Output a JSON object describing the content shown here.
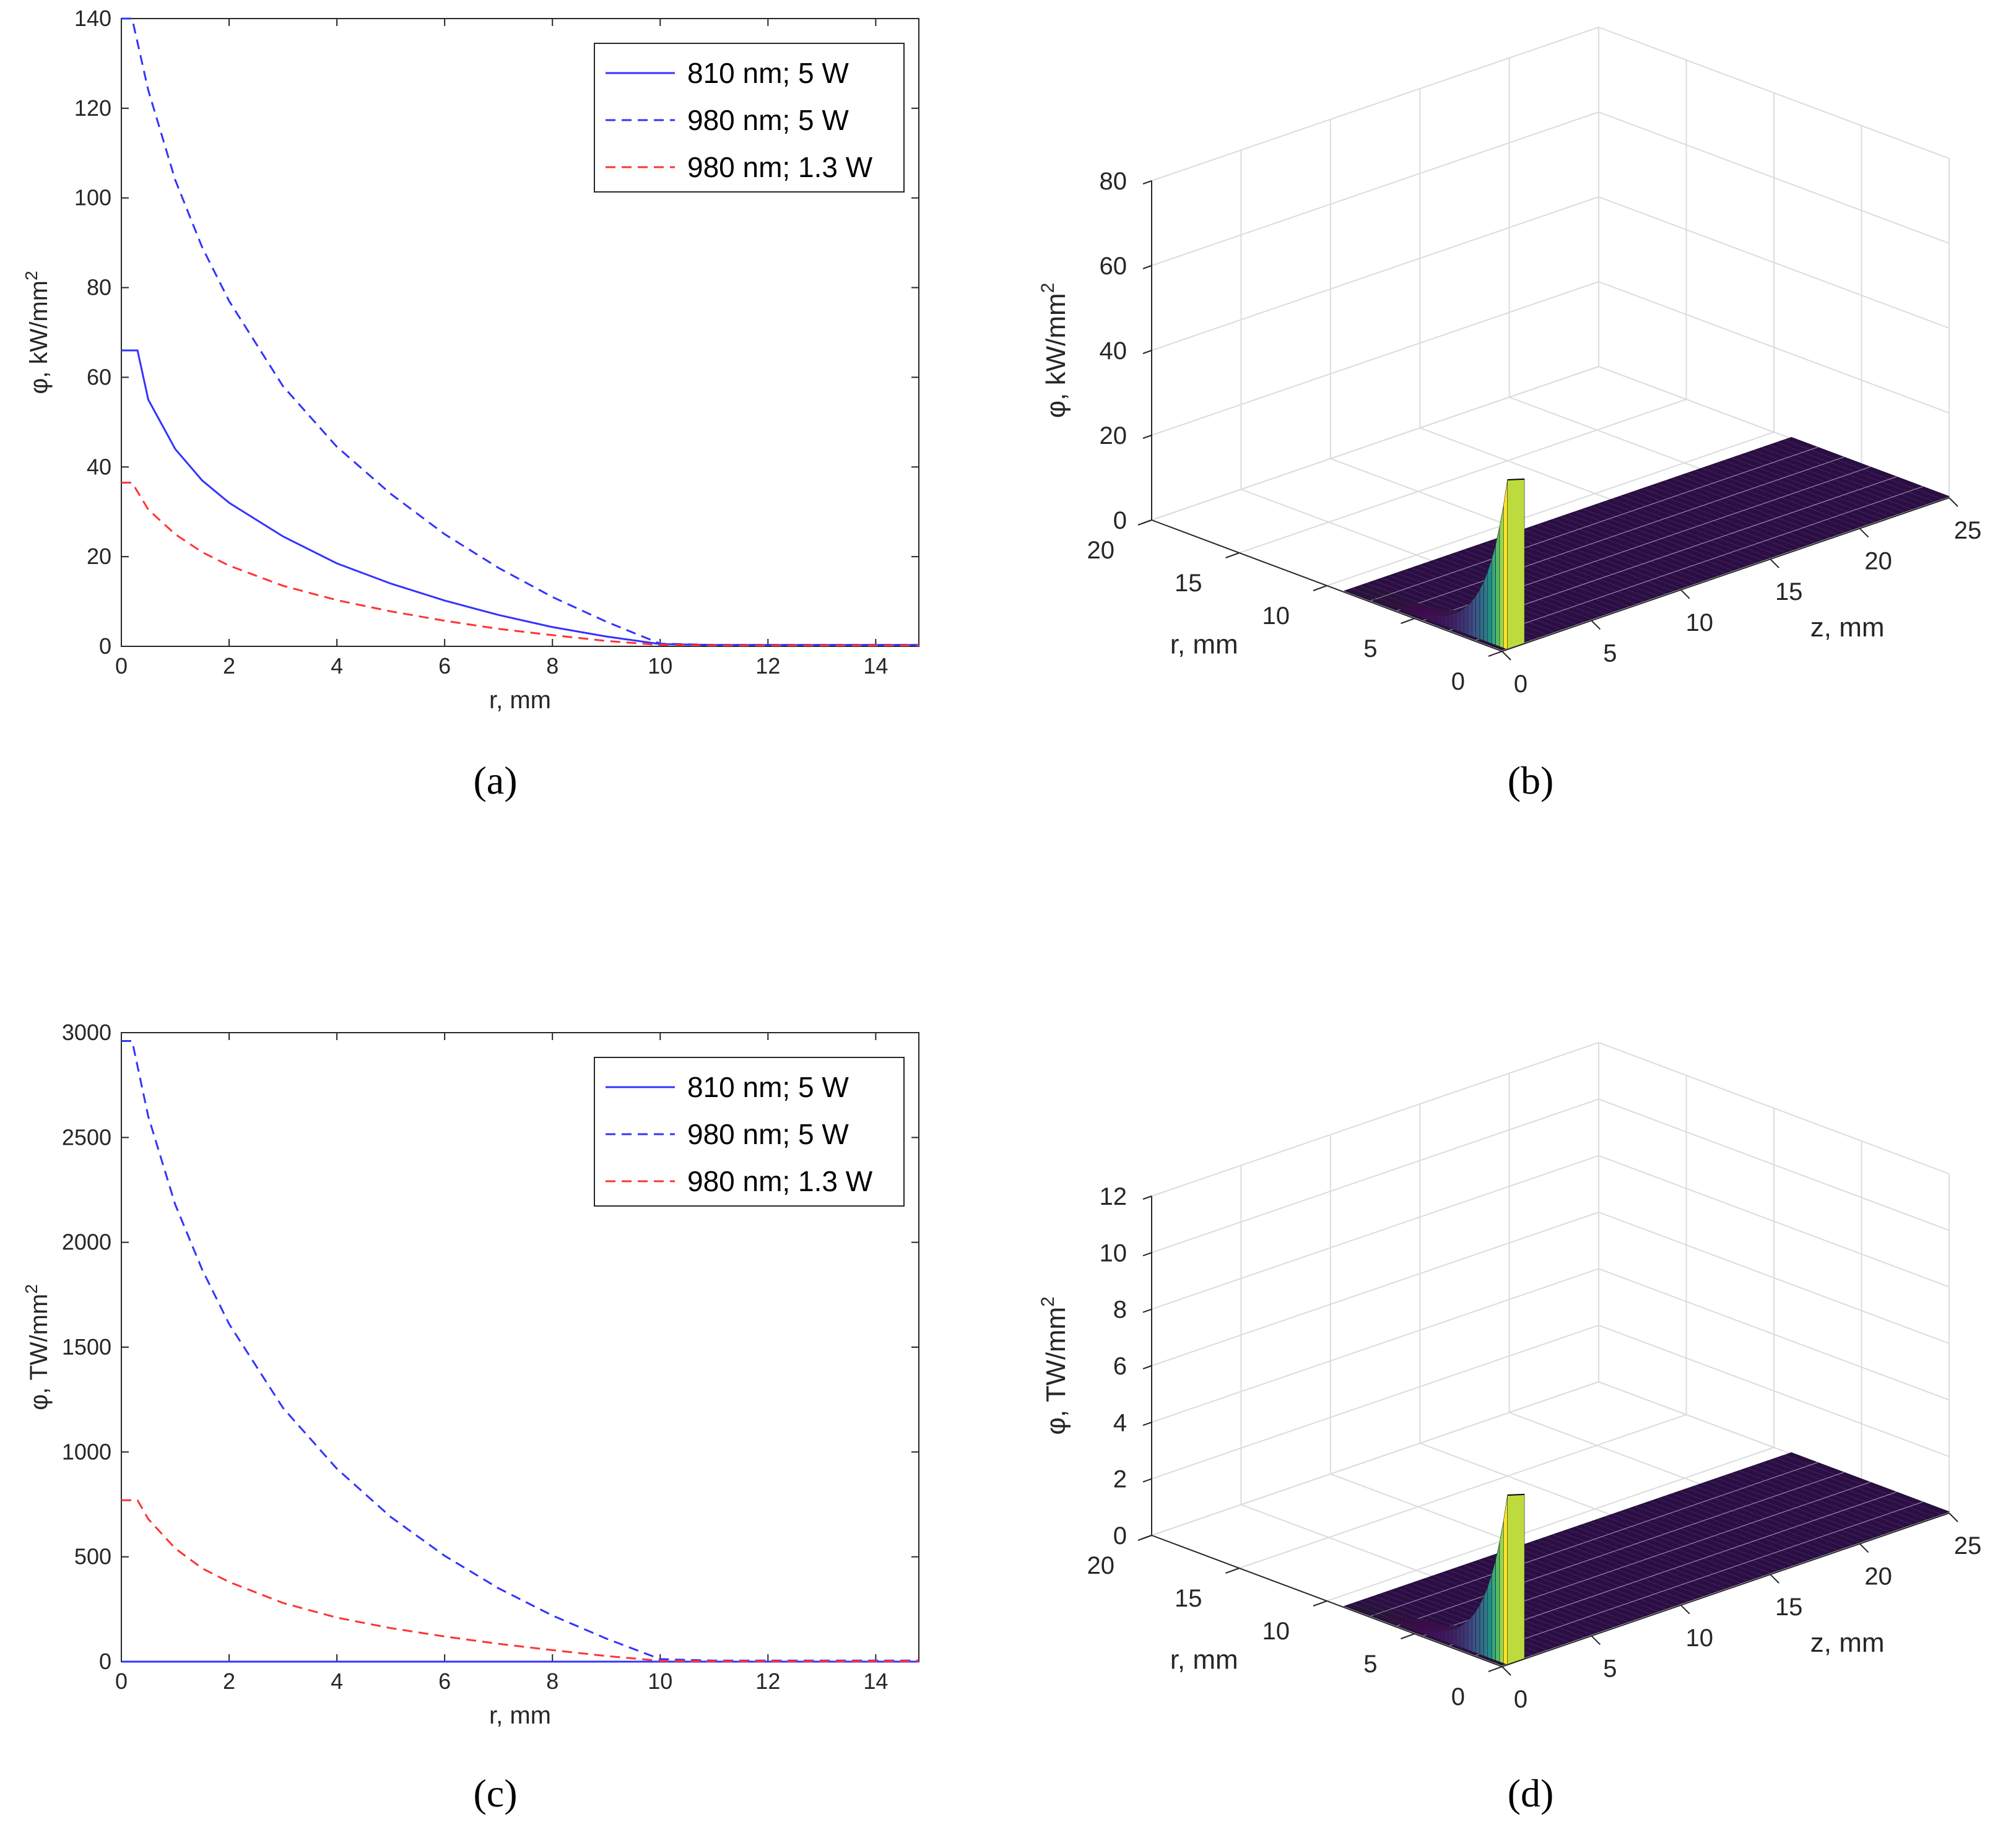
{
  "chart_data": [
    {
      "panel": "(a)",
      "type": "line",
      "xlabel": "r, mm",
      "ylabel": "φ, kW/mm",
      "ylabel_sup": "2",
      "xlim": [
        0,
        14.8
      ],
      "ylim": [
        0,
        140
      ],
      "xticks": [
        "0",
        "2",
        "4",
        "6",
        "8",
        "10",
        "12",
        "14"
      ],
      "yticks": [
        "0",
        "20",
        "40",
        "60",
        "80",
        "100",
        "120",
        "140"
      ],
      "legend_position": "top-right",
      "series": [
        {
          "name": "810 nm; 5 W",
          "color": "#3333ff",
          "dash": "solid",
          "points": [
            [
              0,
              66
            ],
            [
              0.3,
              66
            ],
            [
              0.5,
              55
            ],
            [
              1,
              44
            ],
            [
              1.5,
              37
            ],
            [
              2,
              32
            ],
            [
              3,
              24.5
            ],
            [
              4,
              18.5
            ],
            [
              5,
              14
            ],
            [
              6,
              10.2
            ],
            [
              7,
              7
            ],
            [
              8,
              4.3
            ],
            [
              9,
              2.2
            ],
            [
              10,
              0.5
            ],
            [
              11,
              0.3
            ],
            [
              14.8,
              0.3
            ]
          ]
        },
        {
          "name": "980 nm; 5 W",
          "color": "#3333ff",
          "dash": "dashed",
          "points": [
            [
              0,
              140
            ],
            [
              0.2,
              140
            ],
            [
              0.5,
              124
            ],
            [
              1,
              104
            ],
            [
              1.5,
              89
            ],
            [
              2,
              77
            ],
            [
              3,
              58
            ],
            [
              4,
              44.5
            ],
            [
              5,
              34
            ],
            [
              6,
              25
            ],
            [
              7,
              17.5
            ],
            [
              8,
              11
            ],
            [
              9,
              5.5
            ],
            [
              10,
              0.6
            ],
            [
              11,
              0.3
            ],
            [
              14.8,
              0.3
            ]
          ]
        },
        {
          "name": "980 nm; 1.3 W",
          "color": "#ff3333",
          "dash": "dashed",
          "points": [
            [
              0,
              36.5
            ],
            [
              0.2,
              36.5
            ],
            [
              0.5,
              30.5
            ],
            [
              1,
              25
            ],
            [
              1.5,
              21
            ],
            [
              2,
              18
            ],
            [
              3,
              13.5
            ],
            [
              4,
              10.3
            ],
            [
              5,
              7.8
            ],
            [
              6,
              5.7
            ],
            [
              7,
              3.9
            ],
            [
              8,
              2.5
            ],
            [
              9,
              1.2
            ],
            [
              10,
              0.3
            ],
            [
              11,
              0.2
            ],
            [
              14.8,
              0.2
            ]
          ]
        }
      ]
    },
    {
      "panel": "(b)",
      "type": "surface",
      "xlabel": "z, mm",
      "ylabel": "r, mm",
      "zlabel": "φ, kW/mm",
      "zlabel_sup": "2",
      "xticks": [
        "0",
        "5",
        "10",
        "15",
        "20",
        "25"
      ],
      "yticks": [
        "0",
        "5",
        "10",
        "15",
        "20"
      ],
      "zticks": [
        "0",
        "20",
        "40",
        "60",
        "80"
      ],
      "zlim": [
        0,
        80
      ],
      "peak_value": 40,
      "colormap": [
        "#440154",
        "#3b528b",
        "#21918c",
        "#5ec962",
        "#fde725"
      ]
    },
    {
      "panel": "(c)",
      "type": "line",
      "xlabel": "r, mm",
      "ylabel": "φ, TW/mm",
      "ylabel_sup": "2",
      "xlim": [
        0,
        14.8
      ],
      "ylim": [
        0,
        3000
      ],
      "xticks": [
        "0",
        "2",
        "4",
        "6",
        "8",
        "10",
        "12",
        "14"
      ],
      "yticks": [
        "0",
        "500",
        "1000",
        "1500",
        "2000",
        "2500",
        "3000"
      ],
      "legend_position": "top-right",
      "series": [
        {
          "name": "810 nm; 5 W",
          "color": "#3333ff",
          "dash": "solid",
          "points": [
            [
              0,
              0
            ],
            [
              14.8,
              0
            ]
          ]
        },
        {
          "name": "980 nm; 5 W",
          "color": "#3333ff",
          "dash": "dashed",
          "points": [
            [
              0,
              2960
            ],
            [
              0.2,
              2960
            ],
            [
              0.5,
              2600
            ],
            [
              1,
              2180
            ],
            [
              1.5,
              1870
            ],
            [
              2,
              1610
            ],
            [
              3,
              1210
            ],
            [
              4,
              920
            ],
            [
              5,
              690
            ],
            [
              6,
              505
            ],
            [
              7,
              350
            ],
            [
              8,
              220
            ],
            [
              9,
              110
            ],
            [
              10,
              12
            ],
            [
              11,
              5
            ],
            [
              14.8,
              5
            ]
          ]
        },
        {
          "name": "980 nm; 1.3 W",
          "color": "#ff3333",
          "dash": "dashed",
          "points": [
            [
              0,
              770
            ],
            [
              0.3,
              770
            ],
            [
              0.5,
              680
            ],
            [
              1,
              540
            ],
            [
              1.5,
              445
            ],
            [
              2,
              380
            ],
            [
              3,
              280
            ],
            [
              4,
              210
            ],
            [
              5,
              160
            ],
            [
              6,
              120
            ],
            [
              7,
              85
            ],
            [
              8,
              55
            ],
            [
              9,
              27
            ],
            [
              10,
              4
            ],
            [
              11,
              2
            ],
            [
              14.8,
              2
            ]
          ]
        }
      ]
    },
    {
      "panel": "(d)",
      "type": "surface",
      "xlabel": "z, mm",
      "ylabel": "r, mm",
      "zlabel": "φ, TW/mm",
      "zlabel_sup": "2",
      "xticks": [
        "0",
        "5",
        "10",
        "15",
        "20",
        "25"
      ],
      "yticks": [
        "0",
        "5",
        "10",
        "15",
        "20"
      ],
      "zticks": [
        "0",
        "2",
        "4",
        "6",
        "8",
        "10",
        "12"
      ],
      "zlim": [
        0,
        12
      ],
      "peak_value": 6,
      "colormap": [
        "#440154",
        "#3b528b",
        "#21918c",
        "#5ec962",
        "#fde725"
      ]
    }
  ]
}
